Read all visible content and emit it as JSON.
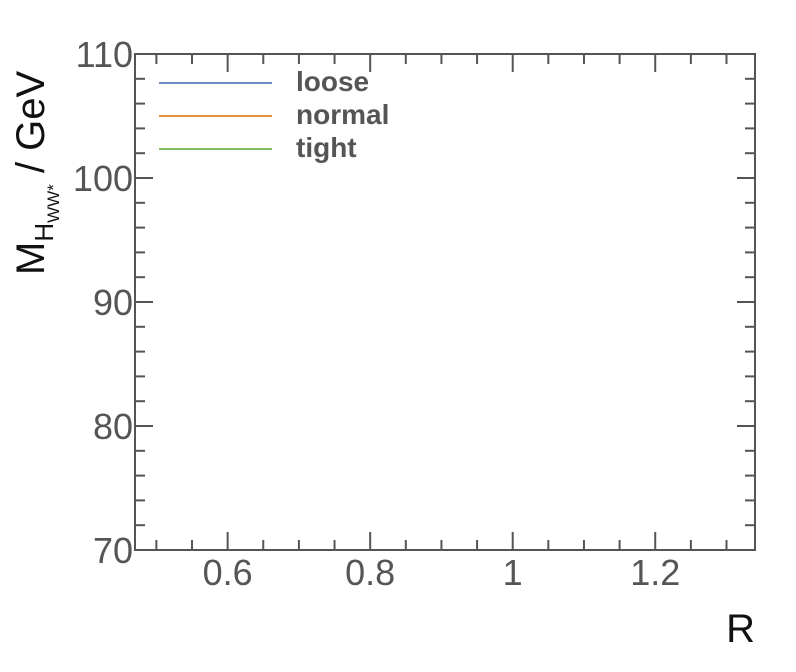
{
  "chart_data": {
    "type": "line",
    "title": "",
    "xlabel": "R",
    "ylabel": {
      "main": "M",
      "sub": "H",
      "subsub": "WW*",
      "unit": " / GeV"
    },
    "xlim": [
      0.47,
      1.34
    ],
    "ylim": [
      70,
      110
    ],
    "x_major_ticks": [
      0.6,
      0.8,
      1.0,
      1.2
    ],
    "x_tick_labels": [
      "0.6",
      "0.8",
      "1",
      "1.2"
    ],
    "x_minor_step": 0.05,
    "y_major_ticks": [
      70,
      80,
      90,
      100,
      110
    ],
    "y_tick_labels": [
      "70",
      "80",
      "90",
      "100",
      "110"
    ],
    "y_minor_step": 2,
    "grid": false,
    "legend_position": "top-left",
    "series": [
      {
        "name": "loose",
        "color": "#6a8cbf",
        "x": [],
        "y": []
      },
      {
        "name": "normal",
        "color": "#e69138",
        "x": [],
        "y": []
      },
      {
        "name": "tight",
        "color": "#7fbf5f",
        "x": [],
        "y": []
      }
    ]
  }
}
